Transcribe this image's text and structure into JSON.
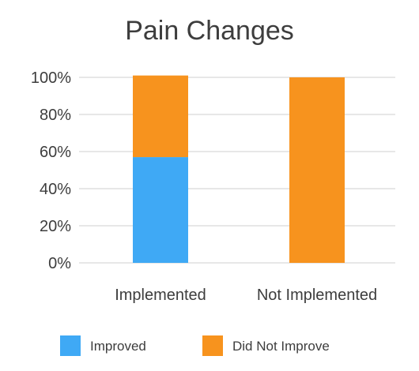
{
  "chart_data": {
    "type": "bar",
    "stacked": true,
    "title": "Pain Changes",
    "xlabel": "",
    "ylabel": "",
    "categories": [
      "Implemented",
      "Not Implemented"
    ],
    "series": [
      {
        "name": "Improved",
        "color": "#3fa9f5",
        "values": [
          57,
          0
        ]
      },
      {
        "name": "Did Not Improve",
        "color": "#f7931e",
        "values": [
          44,
          100
        ]
      }
    ],
    "ylim": [
      0,
      100
    ],
    "yticks": [
      "0%",
      "20%",
      "40%",
      "60%",
      "80%",
      "100%"
    ],
    "grid": true,
    "legend_position": "bottom"
  }
}
